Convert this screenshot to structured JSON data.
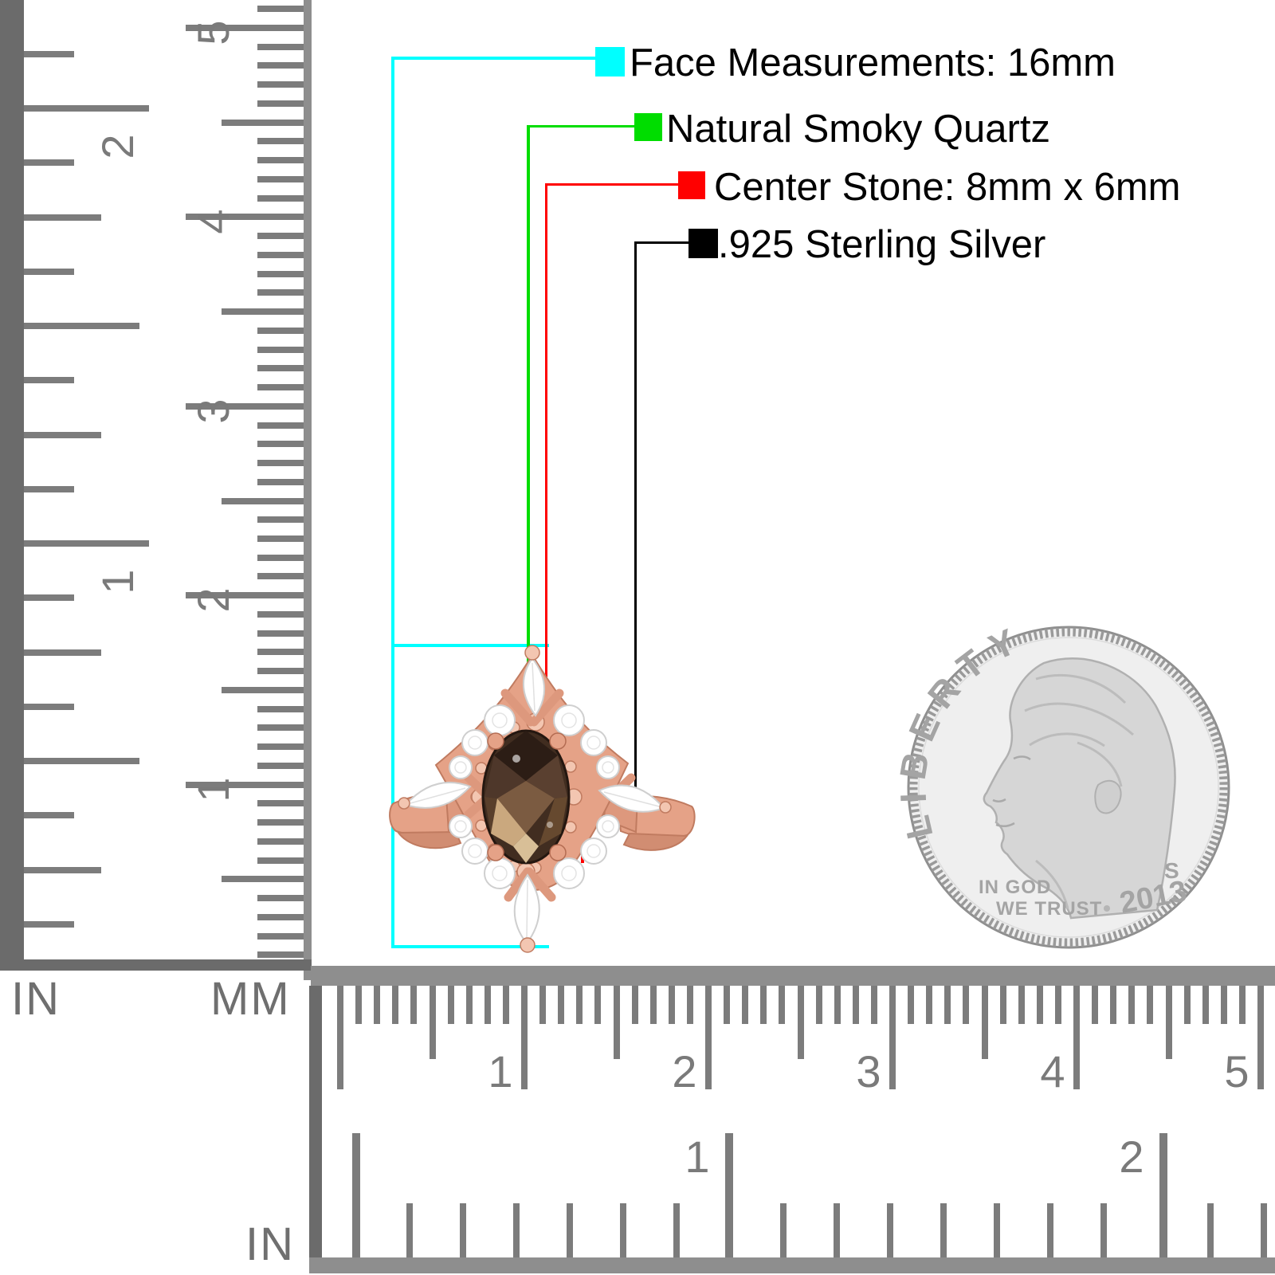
{
  "annotations": {
    "items": [
      {
        "id": "face-measurements",
        "label": "Face Measurements: 16mm",
        "color": "#00ffff"
      },
      {
        "id": "stone-material",
        "label": "Natural Smoky Quartz",
        "color": "#00dd00"
      },
      {
        "id": "center-stone-size",
        "label": "Center Stone: 8mm x 6mm",
        "color": "#ff0000"
      },
      {
        "id": "metal",
        "label": ".925 Sterling Silver",
        "color": "#000000"
      }
    ]
  },
  "vertical_ruler": {
    "unit_left": "IN",
    "unit_right": "MM",
    "inch_numbers": [
      "1",
      "2"
    ],
    "cm_numbers": [
      "1",
      "2",
      "3",
      "4",
      "5"
    ]
  },
  "horizontal_ruler": {
    "unit": "IN",
    "cm_numbers": [
      "1",
      "2",
      "3",
      "4",
      "5"
    ],
    "inch_numbers": [
      "1",
      "2"
    ]
  },
  "coin": {
    "liberty": "LIBERTY",
    "motto_line1": "IN GOD",
    "motto_line2": "WE TRUST",
    "mint_mark": "S",
    "year": "2013"
  },
  "colors": {
    "background": "#ffffff",
    "ruler_tick": "#7c7c7c",
    "ruler_edge": "#6b6b6b",
    "ruler_bar": "#8e8e8e",
    "ruler_number": "#7a7a7a",
    "ruler_unit": "#6f6f6f",
    "annotation_text": "#000000",
    "coin_field": "#efefef",
    "coin_rim": "#8f8f8f",
    "coin_relief": "#d6d6d6",
    "coin_text": "#a4a4a4"
  },
  "ring": {
    "colors": {
      "gold": "#e5a287",
      "gold_dark": "#c07b60",
      "gold_light": "#f3c6b1",
      "stone": "#412d20",
      "cz": "#ffffff"
    }
  }
}
